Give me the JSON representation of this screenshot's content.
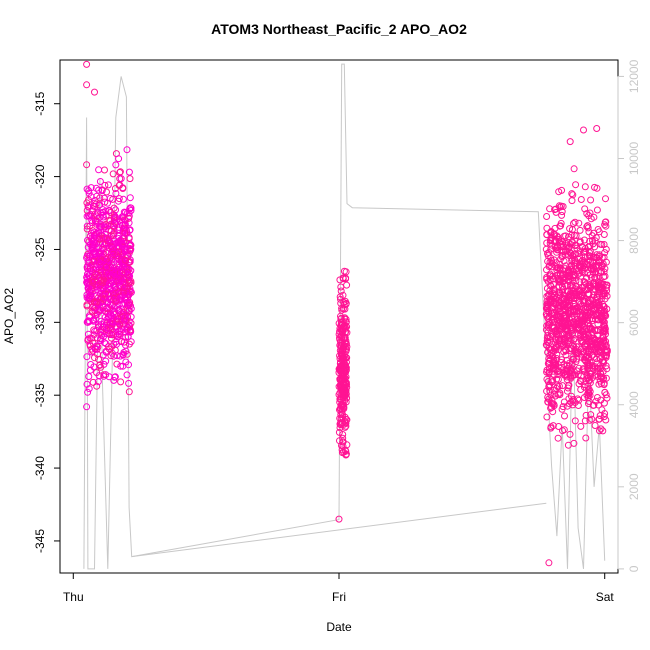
{
  "chart_data": {
    "type": "scatter",
    "title": "ATOM3 Northeast_Pacific_2 APO_AO2",
    "xlabel": "Date",
    "ylabel": "APO_AO2",
    "ylabel_right": "",
    "x_ticks": [
      "Thu",
      "Fri",
      "Sat"
    ],
    "y_ticks": [
      "-345",
      "-340",
      "-335",
      "-330",
      "-325",
      "-320",
      "-315"
    ],
    "y2_ticks": [
      "0",
      "2000",
      "4000",
      "6000",
      "8000",
      "10000",
      "12000"
    ],
    "xlim": [
      -0.05,
      2.05
    ],
    "ylim": [
      -347.2,
      -312.0
    ],
    "y2lim": [
      -100,
      12400
    ],
    "grid": false,
    "colors": {
      "points": "#ff1493",
      "points_alt": "#ff00cc",
      "altitude": "#c8c8c8",
      "axis": "#000000",
      "y2_axis": "#c8c8c8"
    },
    "series": [
      {
        "kind": "scatter",
        "clusters": [
          {
            "day": "Thu",
            "x_range": [
              0.05,
              0.22
            ],
            "y_range": [
              -343,
              -312.3
            ],
            "center": -327,
            "spread": 5.5,
            "count": 900
          },
          {
            "day": "Fri",
            "x_range": [
              1.0,
              1.03
            ],
            "y_range": [
              -343.5,
              -322.5
            ],
            "center": -333,
            "spread": 4.5,
            "count": 280
          },
          {
            "day": "Sat",
            "x_range": [
              1.78,
              2.01
            ],
            "y_range": [
              -346.5,
              -316.5
            ],
            "center": -329.5,
            "spread": 6.0,
            "count": 1200
          }
        ],
        "outliers": [
          [
            0.05,
            -312.3
          ],
          [
            0.05,
            -313.7
          ],
          [
            0.08,
            -314.2
          ],
          [
            1.0,
            -343.5
          ],
          [
            1.79,
            -346.5
          ],
          [
            1.92,
            -316.8
          ],
          [
            1.97,
            -316.7
          ],
          [
            1.87,
            -317.6
          ]
        ]
      },
      {
        "kind": "line",
        "axis": "right",
        "points": [
          [
            0.04,
            0
          ],
          [
            0.05,
            11000
          ],
          [
            0.055,
            0
          ],
          [
            0.08,
            0
          ],
          [
            0.1,
            9500
          ],
          [
            0.11,
            4500
          ],
          [
            0.13,
            0
          ],
          [
            0.15,
            6000
          ],
          [
            0.16,
            11000
          ],
          [
            0.18,
            12000
          ],
          [
            0.2,
            11500
          ],
          [
            0.21,
            1500
          ],
          [
            0.22,
            300
          ],
          [
            1.0,
            1200
          ],
          [
            1.01,
            12300
          ],
          [
            1.02,
            12300
          ],
          [
            1.03,
            8900
          ],
          [
            1.05,
            8800
          ],
          [
            1.75,
            8700
          ],
          [
            1.78,
            5000
          ],
          [
            1.8,
            2500
          ],
          [
            1.82,
            800
          ],
          [
            1.84,
            3500
          ],
          [
            1.86,
            0
          ],
          [
            1.88,
            6000
          ],
          [
            1.9,
            1000
          ],
          [
            1.92,
            0
          ],
          [
            1.94,
            5000
          ],
          [
            1.96,
            2000
          ],
          [
            1.98,
            3500
          ],
          [
            2.0,
            200
          ]
        ],
        "return_leg": [
          [
            0.22,
            300
          ],
          [
            1.78,
            1600
          ]
        ]
      }
    ]
  }
}
